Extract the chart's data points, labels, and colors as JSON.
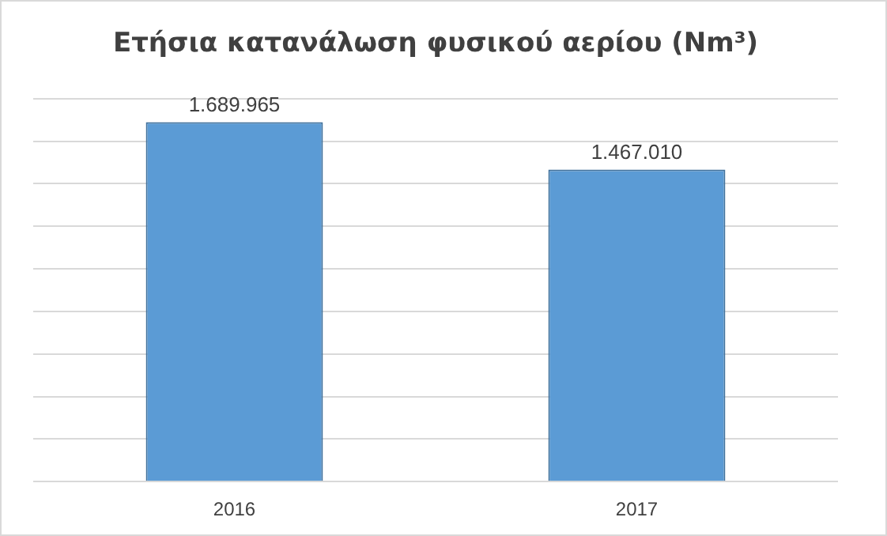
{
  "chart_data": {
    "type": "bar",
    "title": "Ετήσια κατανάλωση φυσικού αερίου (Nm³)",
    "categories": [
      "2016",
      "2017"
    ],
    "values": [
      1689965,
      1467010
    ],
    "value_labels": [
      "1.689.965",
      "1.467.010"
    ],
    "color": "#5b9bd5",
    "ylim": [
      0,
      1800000
    ],
    "yticks": [
      {
        "value": 0,
        "label": null
      },
      {
        "value": 200000,
        "label": null
      },
      {
        "value": 400000,
        "label": null
      },
      {
        "value": 600000,
        "label": null
      },
      {
        "value": 800000,
        "label": null
      },
      {
        "value": 1000000,
        "label": null
      },
      {
        "value": 1200000,
        "label": null
      },
      {
        "value": 1400000,
        "label": null
      },
      {
        "value": 1600000,
        "label": null
      },
      {
        "value": 1800000,
        "label": null
      }
    ],
    "grid": "y",
    "tick_labels": "x"
  }
}
